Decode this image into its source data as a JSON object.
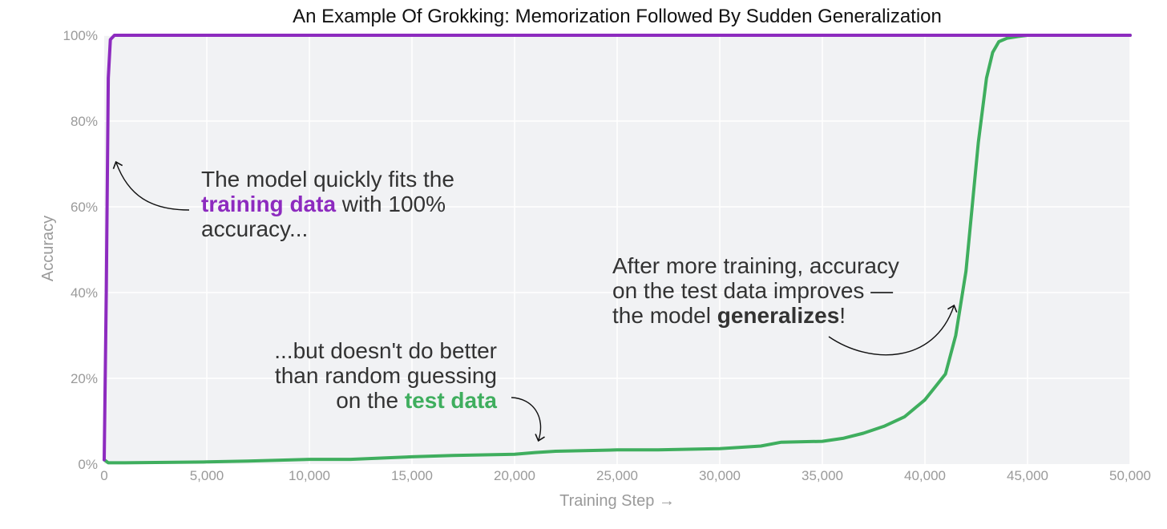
{
  "chart_data": {
    "type": "line",
    "title": "An Example Of Grokking: Memorization Followed By Sudden Generalization",
    "xlabel": "Training Step →",
    "ylabel": "Accuracy",
    "xlim": [
      0,
      50000
    ],
    "ylim": [
      0,
      100
    ],
    "x_ticks": [
      0,
      5000,
      10000,
      15000,
      20000,
      25000,
      30000,
      35000,
      40000,
      45000,
      50000
    ],
    "x_tick_labels": [
      "0",
      "5,000",
      "10,000",
      "15,000",
      "20,000",
      "25,000",
      "30,000",
      "35,000",
      "40,000",
      "45,000",
      "50,000"
    ],
    "y_ticks": [
      0,
      20,
      40,
      60,
      80,
      100
    ],
    "y_tick_labels": [
      "0%",
      "20%",
      "40%",
      "60%",
      "80%",
      "100%"
    ],
    "grid": true,
    "series": [
      {
        "name": "training data",
        "color": "#8d2bbf",
        "x": [
          0,
          100,
          200,
          300,
          500,
          1000,
          5000,
          10000,
          20000,
          30000,
          40000,
          50000
        ],
        "y": [
          1,
          40,
          90,
          99,
          100,
          100,
          100,
          100,
          100,
          100,
          100,
          100
        ]
      },
      {
        "name": "test data",
        "color": "#3fae5e",
        "x": [
          0,
          200,
          1000,
          3000,
          5000,
          7000,
          10000,
          12000,
          13500,
          15000,
          17000,
          20000,
          21000,
          22000,
          25000,
          27000,
          30000,
          32000,
          33000,
          35000,
          36000,
          37000,
          38000,
          39000,
          40000,
          40500,
          41000,
          41500,
          42000,
          42300,
          42600,
          43000,
          43300,
          43600,
          44000,
          44500,
          45000,
          46000,
          48000,
          50000
        ],
        "y": [
          1,
          0.3,
          0.3,
          0.4,
          0.5,
          0.7,
          1.1,
          1.1,
          1.4,
          1.7,
          2.0,
          2.3,
          2.7,
          3.0,
          3.3,
          3.3,
          3.6,
          4.2,
          5.1,
          5.3,
          6.0,
          7.2,
          8.8,
          11.0,
          15.0,
          18.0,
          21.0,
          30.0,
          45.0,
          60.0,
          75.0,
          90.0,
          96.0,
          98.5,
          99.3,
          99.7,
          100,
          100,
          100,
          100
        ]
      }
    ],
    "annotations": [
      {
        "id": "train",
        "lines": [
          [
            {
              "t": "The model quickly fits the"
            }
          ],
          [
            {
              "t": "training data",
              "hl": "train"
            },
            {
              "t": " with 100%"
            }
          ],
          [
            {
              "t": "accuracy..."
            }
          ]
        ]
      },
      {
        "id": "test",
        "lines": [
          [
            {
              "t": "...but doesn't do better"
            }
          ],
          [
            {
              "t": "than random guessing"
            }
          ],
          [
            {
              "t": "on the "
            },
            {
              "t": "test data",
              "hl": "test"
            }
          ]
        ]
      },
      {
        "id": "gen",
        "lines": [
          [
            {
              "t": "After more training, accuracy"
            }
          ],
          [
            {
              "t": "on the test data improves —"
            }
          ],
          [
            {
              "t": "the model "
            },
            {
              "t": "generalizes",
              "hl": "gen"
            },
            {
              "t": "!"
            }
          ]
        ]
      }
    ]
  }
}
